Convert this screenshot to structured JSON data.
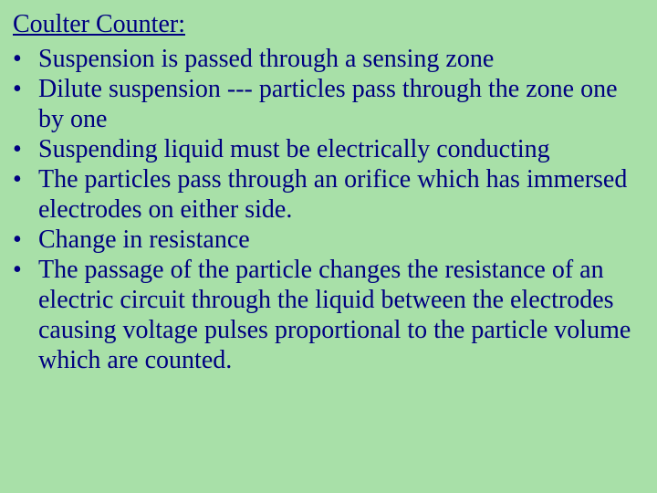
{
  "background_color": "#a8e0a8",
  "text_color": "#000080",
  "font_family": "Times New Roman",
  "title_fontsize": 28,
  "bullet_fontsize": 28,
  "line_height": 1.18,
  "title": "Coulter Counter:",
  "bullets": [
    "Suspension is passed through a sensing zone",
    "Dilute suspension --- particles pass through the zone one by one",
    "Suspending liquid must be electrically conducting",
    "The particles pass through an orifice which has immersed electrodes on either side.",
    "Change in resistance",
    "The passage of the particle changes the resistance of an electric circuit through the liquid between the electrodes causing voltage pulses proportional to the particle volume which are counted."
  ]
}
